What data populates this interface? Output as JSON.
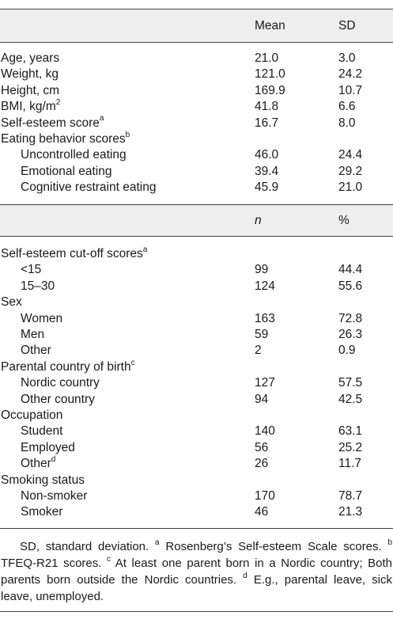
{
  "table": {
    "header1": {
      "col1": "Mean",
      "col2": "SD"
    },
    "continuous_rows": [
      {
        "label": "Age, years",
        "col1": "21.0",
        "col2": "3.0"
      },
      {
        "label": "Weight, kg",
        "col1": "121.0",
        "col2": "24.2"
      },
      {
        "label": "Height, cm",
        "col1": "169.9",
        "col2": "10.7"
      },
      {
        "label": "BMI, kg/m",
        "sup": "2",
        "col1": "41.8",
        "col2": "6.6"
      },
      {
        "label": "Self-esteem score",
        "sup": "a",
        "col1": "16.7",
        "col2": "8.0"
      },
      {
        "label": "Eating behavior scores",
        "sup": "b"
      },
      {
        "label": "Uncontrolled eating",
        "indent": true,
        "col1": "46.0",
        "col2": "24.4"
      },
      {
        "label": "Emotional eating",
        "indent": true,
        "col1": "39.4",
        "col2": "29.2"
      },
      {
        "label": "Cognitive restraint eating",
        "indent": true,
        "col1": "45.9",
        "col2": "21.0"
      }
    ],
    "header2": {
      "col1": "n",
      "col2": "%"
    },
    "categorical_rows": [
      {
        "label": "Self-esteem cut-off scores",
        "sup": "a"
      },
      {
        "label": "<15",
        "indent": true,
        "col1": "99",
        "col2": "44.4"
      },
      {
        "label": "15–30",
        "indent": true,
        "col1": "124",
        "col2": "55.6"
      },
      {
        "label": "Sex"
      },
      {
        "label": "Women",
        "indent": true,
        "col1": "163",
        "col2": "72.8"
      },
      {
        "label": "Men",
        "indent": true,
        "col1": "59",
        "col2": "26.3"
      },
      {
        "label": "Other",
        "indent": true,
        "col1": "2",
        "col2": "0.9"
      },
      {
        "label": "Parental country of birth",
        "sup": "c"
      },
      {
        "label": "Nordic country",
        "indent": true,
        "col1": "127",
        "col2": "57.5"
      },
      {
        "label": "Other country",
        "indent": true,
        "col1": "94",
        "col2": "42.5"
      },
      {
        "label": "Occupation"
      },
      {
        "label": "Student",
        "indent": true,
        "col1": "140",
        "col2": "63.1"
      },
      {
        "label": "Employed",
        "indent": true,
        "col1": "56",
        "col2": "25.2"
      },
      {
        "label": "Other",
        "sup": "d",
        "indent": true,
        "col1": "26",
        "col2": "11.7"
      },
      {
        "label": "Smoking status"
      },
      {
        "label": "Non-smoker",
        "indent": true,
        "col1": "170",
        "col2": "78.7"
      },
      {
        "label": "Smoker",
        "indent": true,
        "col1": "46",
        "col2": "21.3"
      }
    ]
  },
  "footnotes": {
    "sd": "SD, standard deviation.",
    "a_mark": "a",
    "a_text": "Rosenberg’s Self-esteem Scale scores.",
    "b_mark": "b",
    "b_text": "TFEQ-R21 scores.",
    "c_mark": "c",
    "c_text": "At least one parent born in a Nordic country; Both parents born outside the Nordic countries.",
    "d_mark": "d",
    "d_text": "E.g., parental leave, sick leave, unemployed."
  }
}
